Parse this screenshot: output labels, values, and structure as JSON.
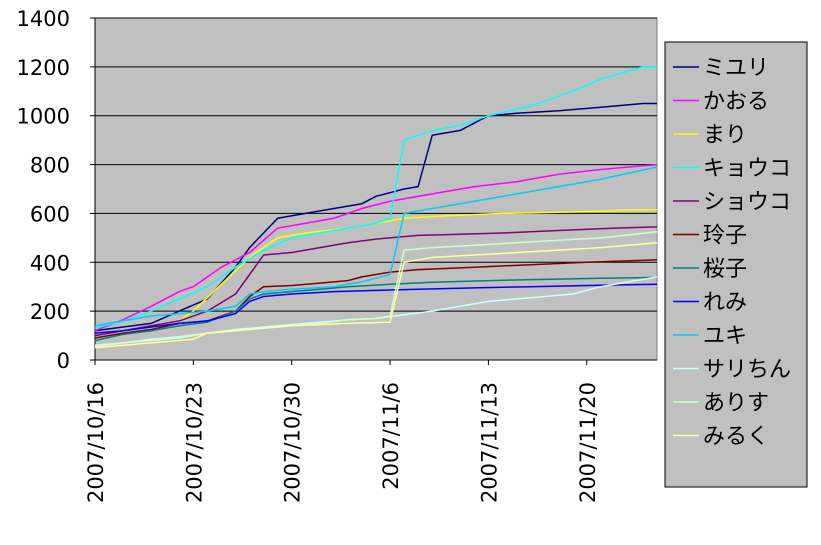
{
  "chart_data": {
    "type": "line",
    "title": "",
    "xlabel": "",
    "ylabel": "",
    "ylim": [
      0,
      1400
    ],
    "xlim": [
      "2007-10-16",
      "2007-11-25"
    ],
    "yticks": [
      0,
      200,
      400,
      600,
      800,
      1000,
      1200,
      1400
    ],
    "xticks": [
      "2007/10/16",
      "2007/10/23",
      "2007/10/30",
      "2007/11/6",
      "2007/11/13",
      "2007/11/20"
    ],
    "grid": "horizontal",
    "plot_background": "#c0c0c0",
    "legend_position": "right",
    "series": [
      {
        "name": "ミユリ",
        "color": "#000080",
        "points": [
          [
            "2007-10-16",
            120
          ],
          [
            "2007-10-18",
            135
          ],
          [
            "2007-10-20",
            150
          ],
          [
            "2007-10-22",
            200
          ],
          [
            "2007-10-24",
            250
          ],
          [
            "2007-10-26",
            380
          ],
          [
            "2007-10-27",
            460
          ],
          [
            "2007-10-28",
            520
          ],
          [
            "2007-10-29",
            580
          ],
          [
            "2007-10-31",
            600
          ],
          [
            "2007-11-02",
            620
          ],
          [
            "2007-11-04",
            640
          ],
          [
            "2007-11-05",
            670
          ],
          [
            "2007-11-07",
            700
          ],
          [
            "2007-11-08",
            710
          ],
          [
            "2007-11-09",
            920
          ],
          [
            "2007-11-11",
            940
          ],
          [
            "2007-11-13",
            1000
          ],
          [
            "2007-11-15",
            1010
          ],
          [
            "2007-11-18",
            1020
          ],
          [
            "2007-11-21",
            1035
          ],
          [
            "2007-11-24",
            1050
          ],
          [
            "2007-11-25",
            1050
          ]
        ]
      },
      {
        "name": "かおる",
        "color": "#ff00ff",
        "points": [
          [
            "2007-10-16",
            120
          ],
          [
            "2007-10-18",
            165
          ],
          [
            "2007-10-20",
            220
          ],
          [
            "2007-10-22",
            280
          ],
          [
            "2007-10-23",
            300
          ],
          [
            "2007-10-25",
            380
          ],
          [
            "2007-10-27",
            440
          ],
          [
            "2007-10-29",
            540
          ],
          [
            "2007-10-31",
            560
          ],
          [
            "2007-11-02",
            580
          ],
          [
            "2007-11-04",
            620
          ],
          [
            "2007-11-06",
            650
          ],
          [
            "2007-11-09",
            680
          ],
          [
            "2007-11-12",
            710
          ],
          [
            "2007-11-15",
            730
          ],
          [
            "2007-11-18",
            760
          ],
          [
            "2007-11-21",
            780
          ],
          [
            "2007-11-25",
            800
          ]
        ]
      },
      {
        "name": "まり",
        "color": "#ffff00",
        "points": [
          [
            "2007-10-16",
            100
          ],
          [
            "2007-10-18",
            120
          ],
          [
            "2007-10-20",
            140
          ],
          [
            "2007-10-22",
            160
          ],
          [
            "2007-10-23",
            200
          ],
          [
            "2007-10-25",
            310
          ],
          [
            "2007-10-27",
            420
          ],
          [
            "2007-10-29",
            500
          ],
          [
            "2007-10-31",
            520
          ],
          [
            "2007-11-03",
            540
          ],
          [
            "2007-11-05",
            560
          ],
          [
            "2007-11-07",
            580
          ],
          [
            "2007-11-10",
            590
          ],
          [
            "2007-11-14",
            600
          ],
          [
            "2007-11-18",
            605
          ],
          [
            "2007-11-22",
            612
          ],
          [
            "2007-11-25",
            615
          ]
        ]
      },
      {
        "name": "キョウコ",
        "color": "#00ffff",
        "points": [
          [
            "2007-10-16",
            130
          ],
          [
            "2007-10-18",
            160
          ],
          [
            "2007-10-20",
            200
          ],
          [
            "2007-10-22",
            250
          ],
          [
            "2007-10-24",
            300
          ],
          [
            "2007-10-26",
            380
          ],
          [
            "2007-10-28",
            450
          ],
          [
            "2007-10-30",
            500
          ],
          [
            "2007-11-01",
            520
          ],
          [
            "2007-11-03",
            540
          ],
          [
            "2007-11-05",
            560
          ],
          [
            "2007-11-06",
            580
          ],
          [
            "2007-11-07",
            900
          ],
          [
            "2007-11-09",
            940
          ],
          [
            "2007-11-11",
            960
          ],
          [
            "2007-11-13",
            1000
          ],
          [
            "2007-11-16",
            1040
          ],
          [
            "2007-11-19",
            1100
          ],
          [
            "2007-11-21",
            1150
          ],
          [
            "2007-11-24",
            1200
          ],
          [
            "2007-11-25",
            1200
          ]
        ]
      },
      {
        "name": "ショウコ",
        "color": "#800080",
        "points": [
          [
            "2007-10-16",
            100
          ],
          [
            "2007-10-18",
            120
          ],
          [
            "2007-10-20",
            140
          ],
          [
            "2007-10-22",
            160
          ],
          [
            "2007-10-24",
            200
          ],
          [
            "2007-10-26",
            270
          ],
          [
            "2007-10-27",
            350
          ],
          [
            "2007-10-28",
            430
          ],
          [
            "2007-10-30",
            440
          ],
          [
            "2007-11-01",
            460
          ],
          [
            "2007-11-03",
            480
          ],
          [
            "2007-11-05",
            495
          ],
          [
            "2007-11-08",
            510
          ],
          [
            "2007-11-11",
            515
          ],
          [
            "2007-11-14",
            520
          ],
          [
            "2007-11-18",
            530
          ],
          [
            "2007-11-22",
            540
          ],
          [
            "2007-11-25",
            545
          ]
        ]
      },
      {
        "name": "玲子",
        "color": "#800000",
        "points": [
          [
            "2007-10-16",
            90
          ],
          [
            "2007-10-18",
            110
          ],
          [
            "2007-10-20",
            125
          ],
          [
            "2007-10-22",
            150
          ],
          [
            "2007-10-24",
            160
          ],
          [
            "2007-10-26",
            200
          ],
          [
            "2007-10-27",
            260
          ],
          [
            "2007-10-28",
            300
          ],
          [
            "2007-10-30",
            305
          ],
          [
            "2007-11-01",
            315
          ],
          [
            "2007-11-03",
            325
          ],
          [
            "2007-11-04",
            340
          ],
          [
            "2007-11-06",
            360
          ],
          [
            "2007-11-08",
            370
          ],
          [
            "2007-11-12",
            380
          ],
          [
            "2007-11-16",
            390
          ],
          [
            "2007-11-20",
            400
          ],
          [
            "2007-11-25",
            410
          ]
        ]
      },
      {
        "name": "桜子",
        "color": "#008080",
        "points": [
          [
            "2007-10-16",
            80
          ],
          [
            "2007-10-18",
            105
          ],
          [
            "2007-10-20",
            120
          ],
          [
            "2007-10-22",
            140
          ],
          [
            "2007-10-24",
            155
          ],
          [
            "2007-10-26",
            200
          ],
          [
            "2007-10-27",
            250
          ],
          [
            "2007-10-28",
            270
          ],
          [
            "2007-10-30",
            280
          ],
          [
            "2007-11-01",
            290
          ],
          [
            "2007-11-03",
            300
          ],
          [
            "2007-11-06",
            310
          ],
          [
            "2007-11-09",
            318
          ],
          [
            "2007-11-13",
            325
          ],
          [
            "2007-11-17",
            330
          ],
          [
            "2007-11-21",
            335
          ],
          [
            "2007-11-25",
            338
          ]
        ]
      },
      {
        "name": "れみ",
        "color": "#0000ff",
        "points": [
          [
            "2007-10-16",
            110
          ],
          [
            "2007-10-18",
            120
          ],
          [
            "2007-10-20",
            135
          ],
          [
            "2007-10-22",
            150
          ],
          [
            "2007-10-24",
            160
          ],
          [
            "2007-10-26",
            190
          ],
          [
            "2007-10-27",
            240
          ],
          [
            "2007-10-28",
            260
          ],
          [
            "2007-10-30",
            270
          ],
          [
            "2007-11-02",
            280
          ],
          [
            "2007-11-05",
            285
          ],
          [
            "2007-11-08",
            290
          ],
          [
            "2007-11-12",
            295
          ],
          [
            "2007-11-16",
            300
          ],
          [
            "2007-11-20",
            305
          ],
          [
            "2007-11-25",
            310
          ]
        ]
      },
      {
        "name": "ユキ",
        "color": "#00ccff",
        "points": [
          [
            "2007-10-16",
            140
          ],
          [
            "2007-10-18",
            160
          ],
          [
            "2007-10-20",
            180
          ],
          [
            "2007-10-22",
            190
          ],
          [
            "2007-10-24",
            200
          ],
          [
            "2007-10-26",
            220
          ],
          [
            "2007-10-27",
            270
          ],
          [
            "2007-10-28",
            280
          ],
          [
            "2007-10-30",
            290
          ],
          [
            "2007-11-02",
            300
          ],
          [
            "2007-11-04",
            320
          ],
          [
            "2007-11-06",
            350
          ],
          [
            "2007-11-07",
            600
          ],
          [
            "2007-11-09",
            620
          ],
          [
            "2007-11-12",
            650
          ],
          [
            "2007-11-15",
            680
          ],
          [
            "2007-11-18",
            710
          ],
          [
            "2007-11-21",
            740
          ],
          [
            "2007-11-25",
            790
          ]
        ]
      },
      {
        "name": "サリちん",
        "color": "#ccffff",
        "points": [
          [
            "2007-10-16",
            60
          ],
          [
            "2007-10-18",
            70
          ],
          [
            "2007-10-20",
            85
          ],
          [
            "2007-10-22",
            95
          ],
          [
            "2007-10-24",
            110
          ],
          [
            "2007-10-26",
            125
          ],
          [
            "2007-10-28",
            135
          ],
          [
            "2007-10-30",
            145
          ],
          [
            "2007-11-01",
            155
          ],
          [
            "2007-11-03",
            165
          ],
          [
            "2007-11-05",
            170
          ],
          [
            "2007-11-07",
            185
          ],
          [
            "2007-11-09",
            200
          ],
          [
            "2007-11-11",
            220
          ],
          [
            "2007-11-13",
            240
          ],
          [
            "2007-11-16",
            255
          ],
          [
            "2007-11-19",
            270
          ],
          [
            "2007-11-21",
            300
          ],
          [
            "2007-11-23",
            320
          ],
          [
            "2007-11-25",
            340
          ]
        ]
      },
      {
        "name": "ありす",
        "color": "#ccffcc",
        "points": [
          [
            "2007-10-16",
            55
          ],
          [
            "2007-10-18",
            70
          ],
          [
            "2007-10-20",
            80
          ],
          [
            "2007-10-22",
            90
          ],
          [
            "2007-10-24",
            110
          ],
          [
            "2007-10-26",
            120
          ],
          [
            "2007-10-28",
            130
          ],
          [
            "2007-10-30",
            140
          ],
          [
            "2007-11-01",
            150
          ],
          [
            "2007-11-03",
            165
          ],
          [
            "2007-11-05",
            170
          ],
          [
            "2007-11-06",
            180
          ],
          [
            "2007-11-07",
            450
          ],
          [
            "2007-11-09",
            460
          ],
          [
            "2007-11-12",
            470
          ],
          [
            "2007-11-15",
            480
          ],
          [
            "2007-11-18",
            490
          ],
          [
            "2007-11-21",
            500
          ],
          [
            "2007-11-25",
            525
          ]
        ]
      },
      {
        "name": "みるく",
        "color": "#ffff99",
        "points": [
          [
            "2007-10-16",
            50
          ],
          [
            "2007-10-18",
            60
          ],
          [
            "2007-10-20",
            70
          ],
          [
            "2007-10-22",
            80
          ],
          [
            "2007-10-23",
            85
          ],
          [
            "2007-10-24",
            110
          ],
          [
            "2007-10-26",
            120
          ],
          [
            "2007-10-28",
            130
          ],
          [
            "2007-10-30",
            140
          ],
          [
            "2007-11-01",
            145
          ],
          [
            "2007-11-03",
            150
          ],
          [
            "2007-11-06",
            155
          ],
          [
            "2007-11-07",
            400
          ],
          [
            "2007-11-09",
            420
          ],
          [
            "2007-11-12",
            430
          ],
          [
            "2007-11-15",
            440
          ],
          [
            "2007-11-18",
            450
          ],
          [
            "2007-11-21",
            460
          ],
          [
            "2007-11-25",
            480
          ]
        ]
      }
    ]
  }
}
